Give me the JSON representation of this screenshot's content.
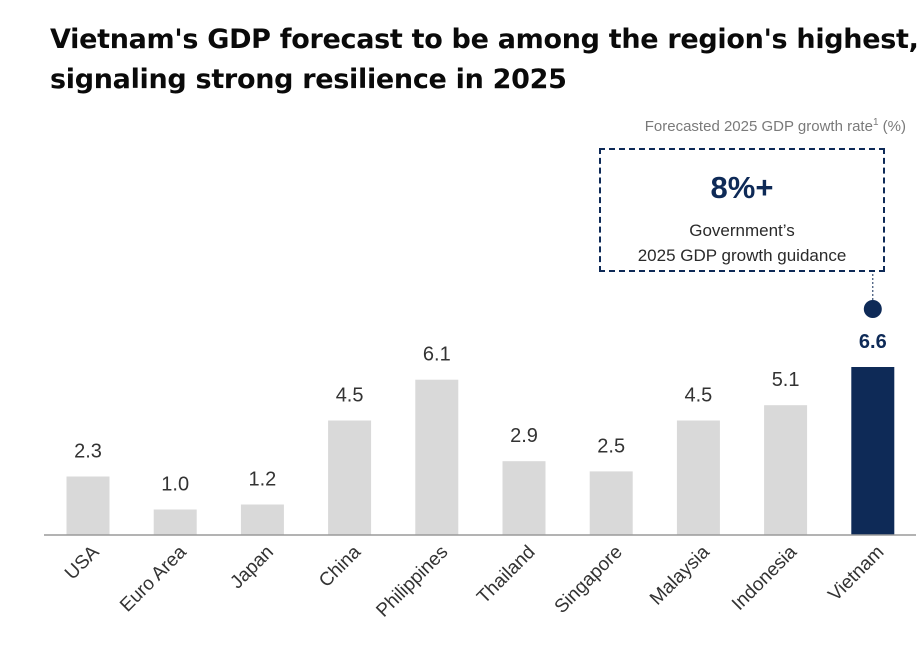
{
  "title": {
    "line1": "Vietnam's GDP forecast to be among the region's highest,",
    "line2": "signaling strong resilience in 2025"
  },
  "subtitle": {
    "text": "Forecasted 2025 GDP growth rate",
    "footnote": "1",
    "unit": " (%)"
  },
  "callout": {
    "headline": "8%+",
    "line1": "Government’s",
    "line2": "2025 GDP growth guidance"
  },
  "colors": {
    "bar_default": "#d9d9d9",
    "bar_highlight": "#0e2a57",
    "label_default": "#333333",
    "axis": "#9a9a9a"
  },
  "chart_data": {
    "type": "bar",
    "title": "Vietnam's GDP forecast to be among the region's highest, signaling strong resilience in 2025",
    "ylabel": "Forecasted 2025 GDP growth rate (%)",
    "xlabel": "",
    "categories": [
      "USA",
      "Euro Area",
      "Japan",
      "China",
      "Philippines",
      "Thailand",
      "Singapore",
      "Malaysia",
      "Indonesia",
      "Vietnam"
    ],
    "values": [
      2.3,
      1.0,
      1.2,
      4.5,
      6.1,
      2.9,
      2.5,
      4.5,
      5.1,
      6.6
    ],
    "value_labels": [
      "2.3",
      "1.0",
      "1.2",
      "4.5",
      "6.1",
      "2.9",
      "2.5",
      "4.5",
      "5.1",
      "6.6"
    ],
    "highlight": "Vietnam",
    "ylim": [
      0,
      6.6
    ],
    "grid": false,
    "legend": "none"
  }
}
